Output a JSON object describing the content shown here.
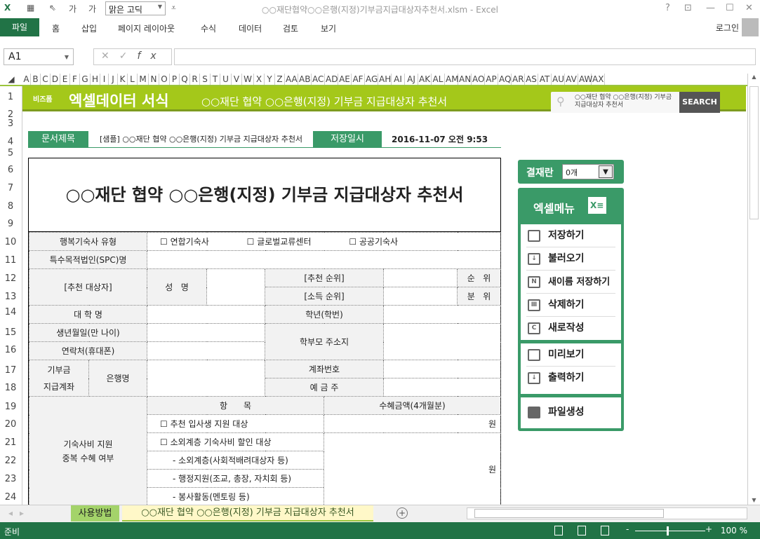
{
  "titlebar": {
    "font_name": "맑은 고딕",
    "title": "○○재단협약○○은행(지정)기부금지급대상자추천서.xlsm - Excel",
    "help": "?",
    "minimize": "—",
    "maximize": "☐",
    "close": "✕"
  },
  "ribbon": {
    "tabs": [
      "파일",
      "홈",
      "삽입",
      "페이지 레이아웃",
      "수식",
      "데이터",
      "검토",
      "보기"
    ],
    "login": "로그인"
  },
  "formula_bar": {
    "name_box": "A1",
    "cancel": "✕",
    "enter": "✓",
    "fx": "fx",
    "value": ""
  },
  "columns": [
    "A",
    "B",
    "C",
    "D",
    "E",
    "F",
    "G",
    "H",
    "I",
    "J",
    "K",
    "L",
    "M",
    "N",
    "O",
    "P",
    "Q",
    "R",
    "S",
    "T",
    "U",
    "V",
    "W",
    "X",
    "Y",
    "Z",
    "AA",
    "AB",
    "AC",
    "AD",
    "AE",
    "AF",
    "AG",
    "AH",
    "AI",
    "AJ",
    "AK",
    "AL",
    "AM",
    "AN",
    "AO",
    "AP",
    "AQ",
    "AR",
    "AS",
    "AT",
    "AU",
    "AV",
    "AW",
    "AX"
  ],
  "rows": [
    "1",
    "2",
    "3",
    "4",
    "5",
    "6",
    "7",
    "8",
    "9",
    "10",
    "11",
    "12",
    "13",
    "14",
    "15",
    "16",
    "17",
    "18",
    "19",
    "20",
    "21",
    "22",
    "23",
    "24"
  ],
  "banner": {
    "brand_small": "비즈폼",
    "brand_main": "엑셀데이터 서식",
    "subtitle": "○○재단 협약 ○○은행(지정) 기부금 지급대상자 추천서",
    "search_text": "○○재단 협약 ○○은행(지정) 기부금 지급대상자 추천서",
    "search_button": "SEARCH"
  },
  "doc_header": {
    "title_label": "문서제목",
    "title_value": "[샘플] ○○재단 협약 ○○은행(지정) 기부금 지급대상자 추천서",
    "saved_label": "저장일시",
    "saved_value": "2016-11-07  오전 9:53"
  },
  "form": {
    "title": "○○재단 협약 ○○은행(지정) 기부금 지급대상자 추천서",
    "dorm_type_label": "행복기숙사 유형",
    "dorm_options": [
      "☐ 연합기숙사",
      "☐ 글로벌교류센터",
      "☐ 공공기숙사"
    ],
    "spc_label": "특수목적법인(SPC)명",
    "target_label": "[추천 대상자]",
    "name_label": "성   명",
    "rec_rank_label": "[추천 순위]",
    "rec_rank_unit": "순   위",
    "income_rank_label": "[소득 순위]",
    "income_rank_unit": "분   위",
    "univ_label": "대 학 명",
    "grade_label": "학년(학번)",
    "birth_label": "생년월일(만 나이)",
    "parent_addr_label": "학부모 주소지",
    "contact_label": "연락처(휴대폰)",
    "account_label_1": "기부금",
    "account_label_2": "지급계좌",
    "bank_label": "은행명",
    "account_no_label": "계좌번호",
    "holder_label": "예 금 주",
    "dup_label_1": "기숙사비 지원",
    "dup_label_2": "중복 수혜 여부",
    "item_header": "항      목",
    "amount_header": "수혜금액(4개월분)",
    "items": [
      "☐ 추천 입사생 지원 대상",
      "☐ 소외계층 기숙사비 할인 대상",
      "- 소외계층(사회적배려대상자 등)",
      "- 행정지원(조교, 총장, 자치회 등)",
      "- 봉사활동(멘토링 등)"
    ],
    "won": "원"
  },
  "approval": {
    "label": "결재란",
    "value": "0개"
  },
  "menu": {
    "title": "엑셀메뉴",
    "items": [
      "저장하기",
      "불러오기",
      "새이름 저장하기",
      "삭제하기",
      "새로작성",
      "미리보기",
      "출력하기",
      "파일생성"
    ]
  },
  "sheets": {
    "tabs": [
      "사용방법",
      "○○재단 협약 ○○은행(지정) 기부금 지급대상자 추천서"
    ],
    "active": 1
  },
  "status": {
    "ready": "준비",
    "zoom": "100 %"
  },
  "colors": {
    "excel_green": "#217346",
    "banner_green": "#a4c81a",
    "accent_green": "#3a9a68"
  }
}
